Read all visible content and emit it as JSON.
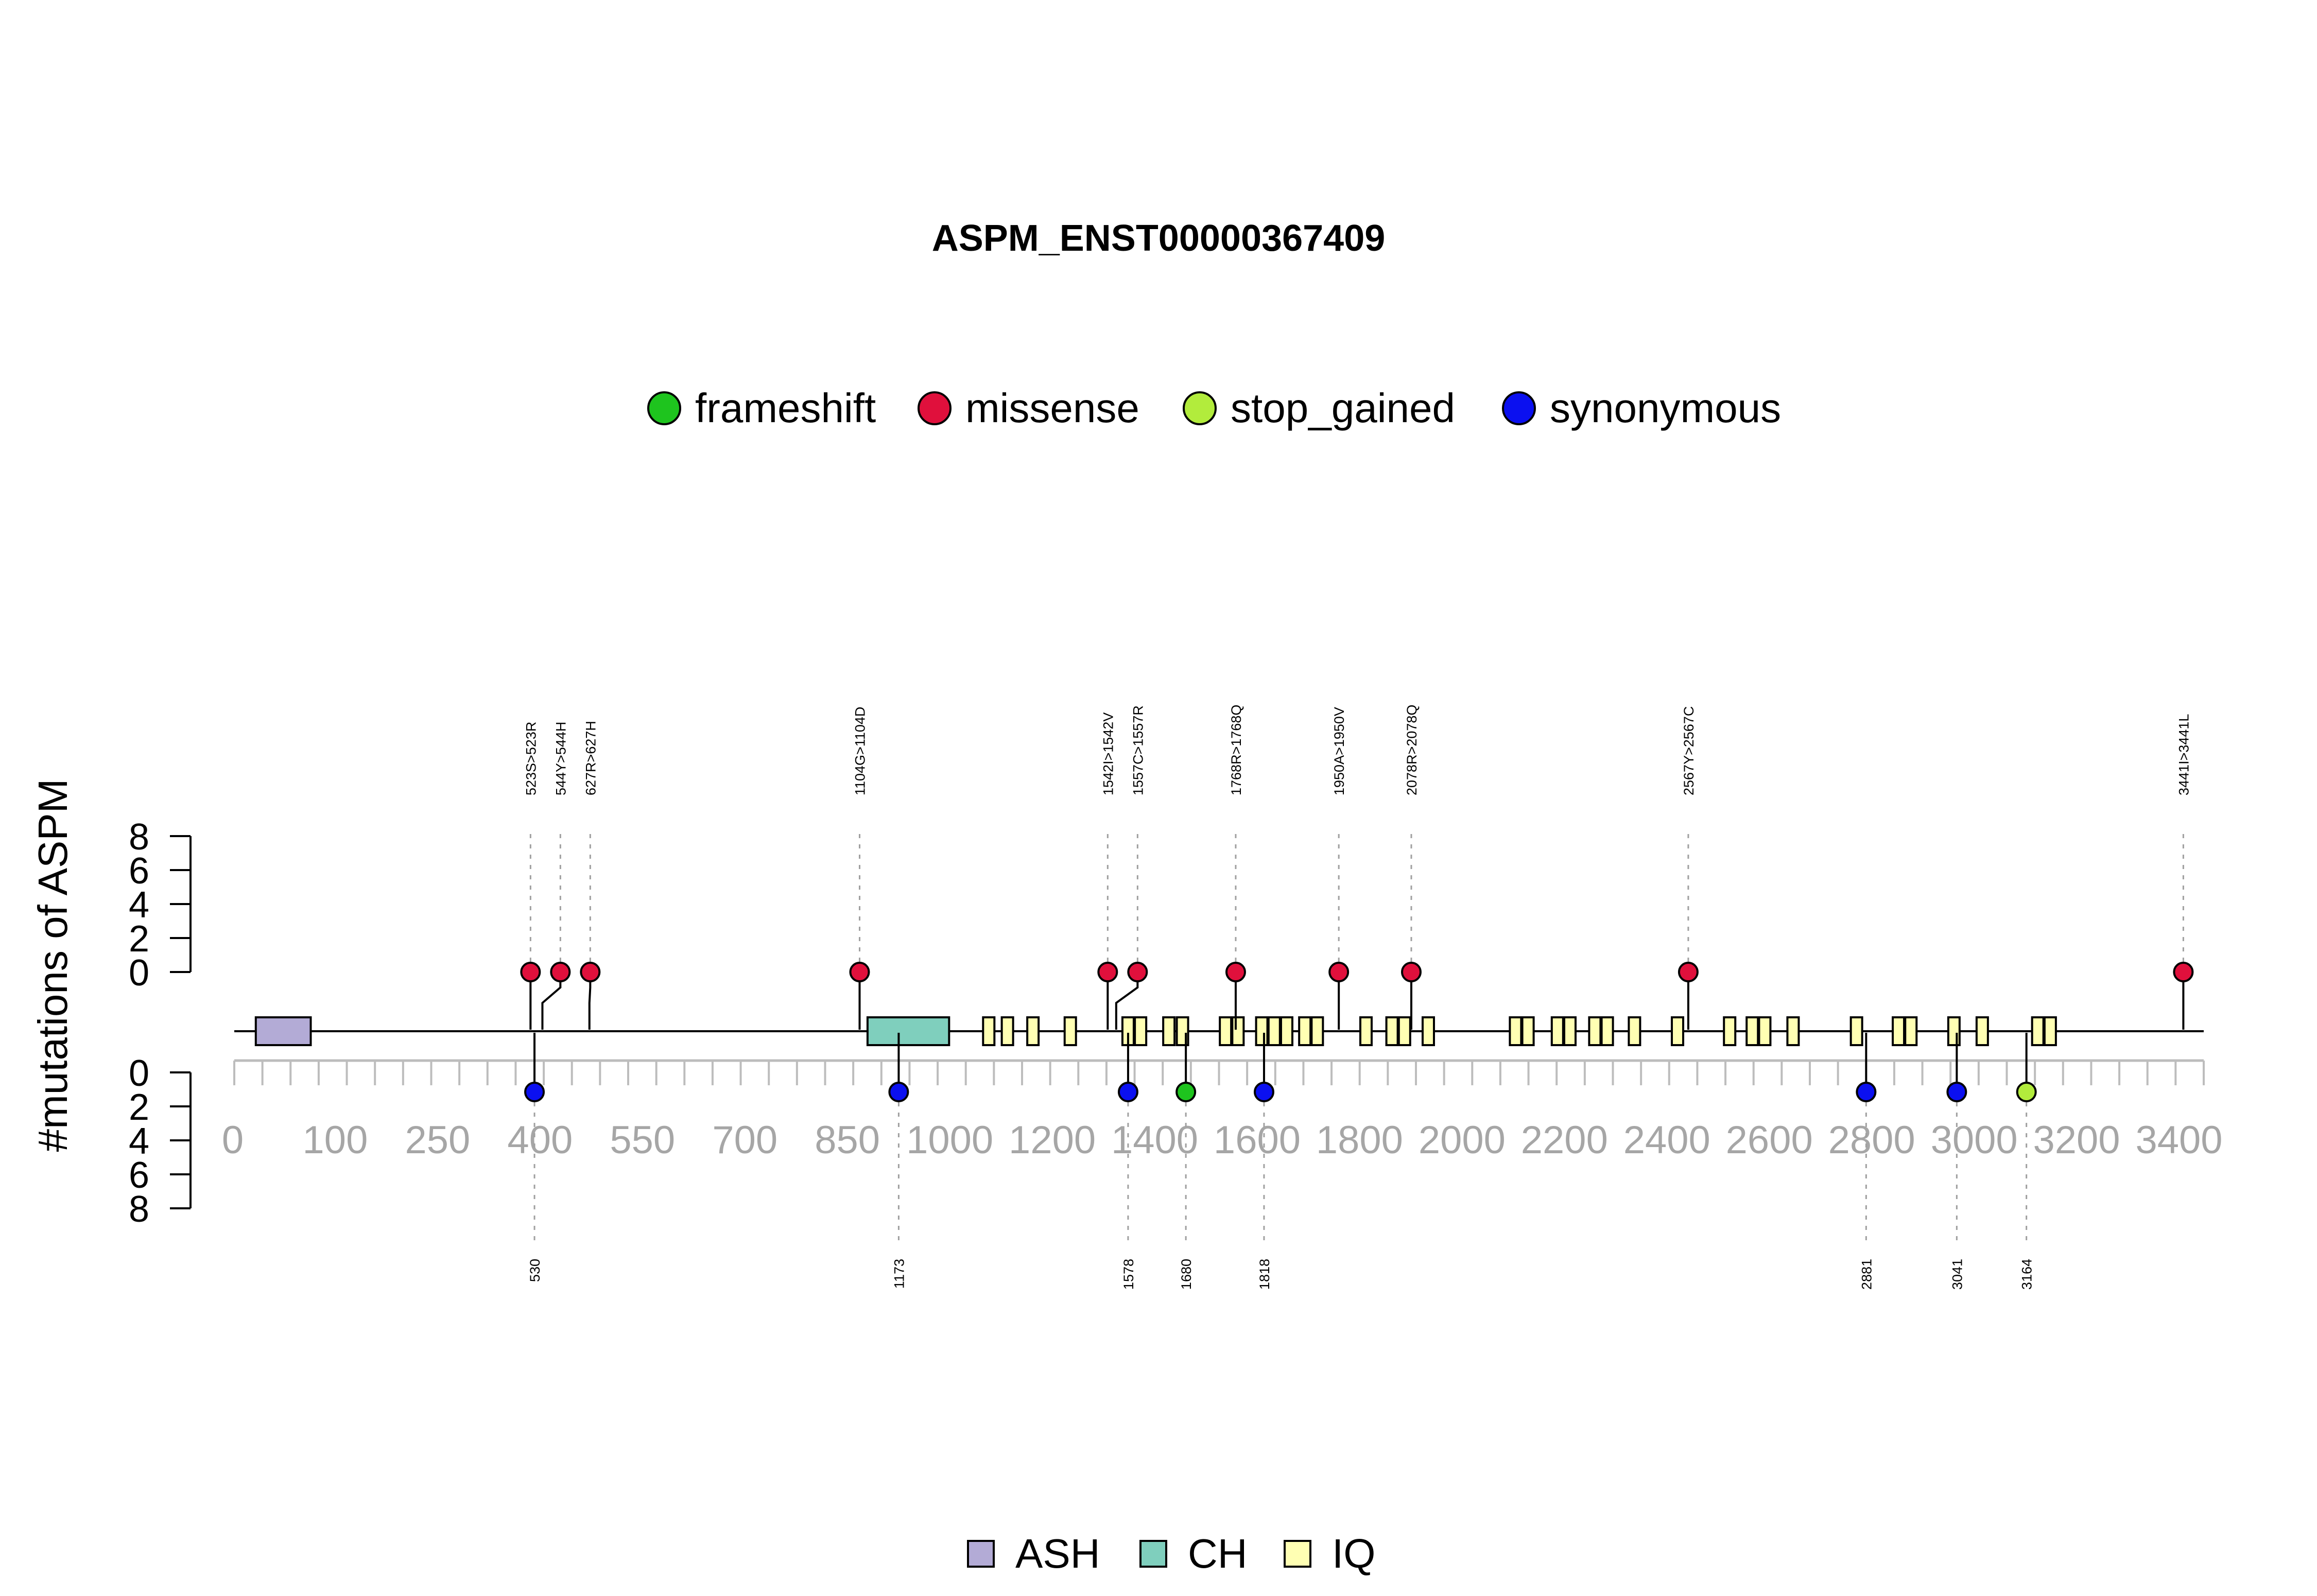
{
  "chart_data": {
    "type": "lollipop",
    "title": "ASPM_ENST00000367409",
    "ylabel": "#mutations of ASPM",
    "y_ticks_upper": [
      "8",
      "6",
      "4",
      "2",
      "0"
    ],
    "y_ticks_lower": [
      "0",
      "2",
      "4",
      "6",
      "8"
    ],
    "ylim": [
      0,
      8
    ],
    "x_tick_labels": [
      "0",
      "100",
      "250",
      "400",
      "550",
      "700",
      "850",
      "1000",
      "1200",
      "1400",
      "1600",
      "1800",
      "2000",
      "2200",
      "2400",
      "2600",
      "2800",
      "3000",
      "3200",
      "3400"
    ],
    "protein_length": 3477,
    "mutation_legend": [
      {
        "name": "frameshift",
        "color": "#1ec41e"
      },
      {
        "name": "missense",
        "color": "#e0103c"
      },
      {
        "name": "stop_gained",
        "color": "#b2ec3c"
      },
      {
        "name": "synonymous",
        "color": "#0b10f0"
      }
    ],
    "domain_legend": [
      {
        "name": "ASH",
        "color": "#b3abd6"
      },
      {
        "name": "CH",
        "color": "#7fcfbd"
      },
      {
        "name": "IQ",
        "color": "#ffffb3"
      }
    ],
    "domains": [
      {
        "name": "ASH",
        "start": 38,
        "end": 135
      },
      {
        "name": "CH",
        "start": 1118,
        "end": 1262
      },
      {
        "name": "IQ",
        "start": 1322,
        "end": 1342
      },
      {
        "name": "IQ",
        "start": 1355,
        "end": 1375
      },
      {
        "name": "IQ",
        "start": 1400,
        "end": 1420
      },
      {
        "name": "IQ",
        "start": 1466,
        "end": 1486
      },
      {
        "name": "IQ",
        "start": 1568,
        "end": 1588
      },
      {
        "name": "IQ",
        "start": 1590,
        "end": 1610
      },
      {
        "name": "IQ",
        "start": 1640,
        "end": 1660
      },
      {
        "name": "IQ",
        "start": 1664,
        "end": 1684
      },
      {
        "name": "IQ",
        "start": 1740,
        "end": 1760
      },
      {
        "name": "IQ",
        "start": 1762,
        "end": 1782
      },
      {
        "name": "IQ",
        "start": 1804,
        "end": 1824
      },
      {
        "name": "IQ",
        "start": 1826,
        "end": 1846
      },
      {
        "name": "IQ",
        "start": 1848,
        "end": 1868
      },
      {
        "name": "IQ",
        "start": 1880,
        "end": 1900
      },
      {
        "name": "IQ",
        "start": 1902,
        "end": 1922
      },
      {
        "name": "IQ",
        "start": 1988,
        "end": 2008
      },
      {
        "name": "IQ",
        "start": 2034,
        "end": 2054
      },
      {
        "name": "IQ",
        "start": 2056,
        "end": 2076
      },
      {
        "name": "IQ",
        "start": 2098,
        "end": 2118
      },
      {
        "name": "IQ",
        "start": 2252,
        "end": 2272
      },
      {
        "name": "IQ",
        "start": 2274,
        "end": 2294
      },
      {
        "name": "IQ",
        "start": 2326,
        "end": 2346
      },
      {
        "name": "IQ",
        "start": 2348,
        "end": 2368
      },
      {
        "name": "IQ",
        "start": 2392,
        "end": 2412
      },
      {
        "name": "IQ",
        "start": 2414,
        "end": 2434
      },
      {
        "name": "IQ",
        "start": 2462,
        "end": 2482
      },
      {
        "name": "IQ",
        "start": 2538,
        "end": 2558
      },
      {
        "name": "IQ",
        "start": 2630,
        "end": 2650
      },
      {
        "name": "IQ",
        "start": 2670,
        "end": 2690
      },
      {
        "name": "IQ",
        "start": 2692,
        "end": 2712
      },
      {
        "name": "IQ",
        "start": 2742,
        "end": 2762
      },
      {
        "name": "IQ",
        "start": 2854,
        "end": 2874
      },
      {
        "name": "IQ",
        "start": 2928,
        "end": 2948
      },
      {
        "name": "IQ",
        "start": 2950,
        "end": 2970
      },
      {
        "name": "IQ",
        "start": 3026,
        "end": 3046
      },
      {
        "name": "IQ",
        "start": 3076,
        "end": 3096
      },
      {
        "name": "IQ",
        "start": 3174,
        "end": 3194
      },
      {
        "name": "IQ",
        "start": 3196,
        "end": 3216
      }
    ],
    "upper_mutations": [
      {
        "label": "523S>523R",
        "pos": 523,
        "count": 1,
        "type": "missense"
      },
      {
        "label": "544Y>544H",
        "pos": 544,
        "count": 1,
        "type": "missense"
      },
      {
        "label": "627R>627H",
        "pos": 627,
        "count": 1,
        "type": "missense"
      },
      {
        "label": "1104G>1104D",
        "pos": 1104,
        "count": 1,
        "type": "missense"
      },
      {
        "label": "1542I>1542V",
        "pos": 1542,
        "count": 1,
        "type": "missense"
      },
      {
        "label": "1557C>1557R",
        "pos": 1557,
        "count": 1,
        "type": "missense"
      },
      {
        "label": "1768R>1768Q",
        "pos": 1768,
        "count": 1,
        "type": "missense"
      },
      {
        "label": "1950A>1950V",
        "pos": 1950,
        "count": 1,
        "type": "missense"
      },
      {
        "label": "2078R>2078Q",
        "pos": 2078,
        "count": 1,
        "type": "missense"
      },
      {
        "label": "2567Y>2567C",
        "pos": 2567,
        "count": 1,
        "type": "missense"
      },
      {
        "label": "3441I>3441L",
        "pos": 3441,
        "count": 1,
        "type": "missense"
      }
    ],
    "lower_mutations": [
      {
        "label": "530",
        "pos": 530,
        "count": 1,
        "type": "synonymous"
      },
      {
        "label": "1173",
        "pos": 1173,
        "count": 1,
        "type": "synonymous"
      },
      {
        "label": "1578",
        "pos": 1578,
        "count": 1,
        "type": "synonymous"
      },
      {
        "label": "1680",
        "pos": 1680,
        "count": 1,
        "type": "frameshift"
      },
      {
        "label": "1818",
        "pos": 1818,
        "count": 1,
        "type": "synonymous"
      },
      {
        "label": "2881",
        "pos": 2881,
        "count": 1,
        "type": "synonymous"
      },
      {
        "label": "3041",
        "pos": 3041,
        "count": 1,
        "type": "synonymous"
      },
      {
        "label": "3164",
        "pos": 3164,
        "count": 1,
        "type": "stop_gained"
      }
    ]
  }
}
